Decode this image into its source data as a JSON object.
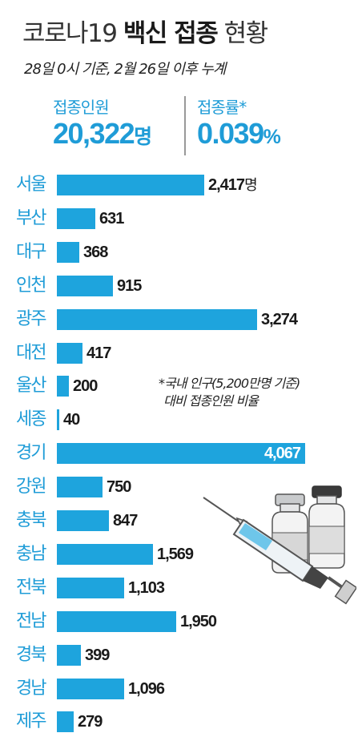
{
  "header": {
    "title_pre": "코로나19 ",
    "title_bold": "백신 접종",
    "title_post": " 현황",
    "subtitle": "28일 0시 기준, 2월 26일 이후 누계"
  },
  "stats": {
    "people_label": "접종인원",
    "people_value": "20,322",
    "people_unit": "명",
    "rate_label": "접종률*",
    "rate_value": "0.039",
    "rate_unit": "%"
  },
  "footnote": {
    "line1": "*국내 인구(5,200만명 기준)",
    "line2": "대비 접종인원 비율"
  },
  "chart_data": {
    "type": "bar",
    "orientation": "horizontal",
    "categories": [
      "서울",
      "부산",
      "대구",
      "인천",
      "광주",
      "대전",
      "울산",
      "세종",
      "경기",
      "강원",
      "충북",
      "충남",
      "전북",
      "전남",
      "경북",
      "경남",
      "제주"
    ],
    "values": [
      2417,
      631,
      368,
      915,
      3274,
      417,
      200,
      40,
      4067,
      750,
      847,
      1569,
      1103,
      1950,
      399,
      1096,
      279
    ],
    "labels": [
      "2,417",
      "631",
      "368",
      "915",
      "3,274",
      "417",
      "200",
      "40",
      "4,067",
      "750",
      "847",
      "1,569",
      "1,103",
      "1,950",
      "399",
      "1,096",
      "279"
    ],
    "first_label_unit": "명",
    "bar_color": "#1ea4dd",
    "label_color": "#1f9cd7"
  }
}
